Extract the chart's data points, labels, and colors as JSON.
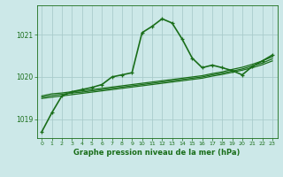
{
  "title": "Graphe pression niveau de la mer (hPa)",
  "bg_color": "#cce8e8",
  "grid_color": "#aacccc",
  "line_color": "#1a6e1a",
  "xlim": [
    -0.5,
    23.5
  ],
  "ylim": [
    1018.55,
    1021.7
  ],
  "xticks": [
    0,
    1,
    2,
    3,
    4,
    5,
    6,
    7,
    8,
    9,
    10,
    11,
    12,
    13,
    14,
    15,
    16,
    17,
    18,
    19,
    20,
    21,
    22,
    23
  ],
  "yticks": [
    1019,
    1020,
    1021
  ],
  "figsize": [
    3.2,
    2.0
  ],
  "dpi": 100,
  "series": [
    {
      "x": [
        0,
        1,
        2,
        3,
        4,
        5,
        6,
        7,
        8,
        9,
        10,
        11,
        12,
        13,
        14,
        15,
        16,
        17,
        18,
        19,
        20,
        21,
        22,
        23
      ],
      "y": [
        1018.7,
        1019.15,
        1019.55,
        1019.65,
        1019.7,
        1019.75,
        1019.82,
        1020.0,
        1020.05,
        1020.1,
        1021.05,
        1021.2,
        1021.38,
        1021.28,
        1020.9,
        1020.45,
        1020.22,
        1020.28,
        1020.22,
        1020.15,
        1020.05,
        1020.25,
        1020.38,
        1020.52
      ],
      "marker": true,
      "lw": 1.2
    },
    {
      "x": [
        0,
        1,
        2,
        3,
        4,
        5,
        6,
        7,
        8,
        9,
        10,
        11,
        12,
        13,
        14,
        15,
        16,
        17,
        18,
        19,
        20,
        21,
        22,
        23
      ],
      "y": [
        1019.55,
        1019.6,
        1019.62,
        1019.65,
        1019.67,
        1019.7,
        1019.73,
        1019.76,
        1019.79,
        1019.82,
        1019.85,
        1019.88,
        1019.91,
        1019.94,
        1019.97,
        1020.0,
        1020.03,
        1020.08,
        1020.12,
        1020.18,
        1020.23,
        1020.3,
        1020.38,
        1020.48
      ],
      "marker": false,
      "lw": 0.9
    },
    {
      "x": [
        0,
        1,
        2,
        3,
        4,
        5,
        6,
        7,
        8,
        9,
        10,
        11,
        12,
        13,
        14,
        15,
        16,
        17,
        18,
        19,
        20,
        21,
        22,
        23
      ],
      "y": [
        1019.52,
        1019.56,
        1019.59,
        1019.62,
        1019.64,
        1019.67,
        1019.7,
        1019.73,
        1019.76,
        1019.79,
        1019.82,
        1019.85,
        1019.88,
        1019.91,
        1019.94,
        1019.97,
        1020.0,
        1020.05,
        1020.09,
        1020.14,
        1020.19,
        1020.26,
        1020.33,
        1020.43
      ],
      "marker": false,
      "lw": 0.9
    },
    {
      "x": [
        0,
        1,
        2,
        3,
        4,
        5,
        6,
        7,
        8,
        9,
        10,
        11,
        12,
        13,
        14,
        15,
        16,
        17,
        18,
        19,
        20,
        21,
        22,
        23
      ],
      "y": [
        1019.49,
        1019.52,
        1019.55,
        1019.58,
        1019.61,
        1019.64,
        1019.67,
        1019.7,
        1019.73,
        1019.76,
        1019.79,
        1019.82,
        1019.85,
        1019.88,
        1019.91,
        1019.94,
        1019.97,
        1020.02,
        1020.06,
        1020.11,
        1020.16,
        1020.22,
        1020.29,
        1020.38
      ],
      "marker": false,
      "lw": 0.9
    }
  ]
}
